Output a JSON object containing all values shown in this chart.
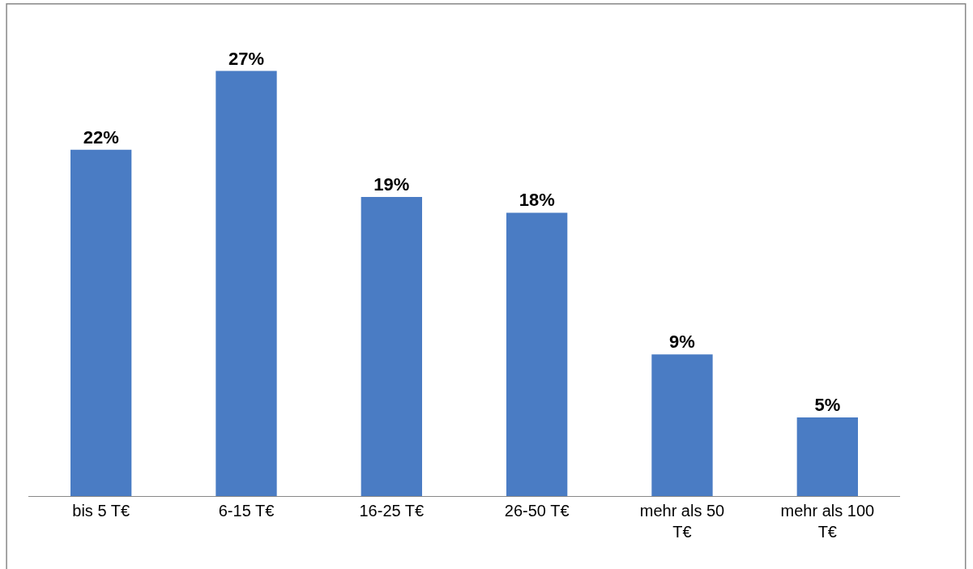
{
  "chart_data": {
    "type": "bar",
    "categories": [
      "bis 5 T€",
      "6-15 T€",
      "16-25 T€",
      "26-50 T€",
      "mehr als 50 T€",
      "mehr als 100 T€"
    ],
    "values": [
      22,
      27,
      19,
      18,
      9,
      5
    ],
    "value_labels": [
      "22%",
      "27%",
      "19%",
      "18%",
      "9%",
      "5%"
    ],
    "color": "#4a7cc4"
  }
}
